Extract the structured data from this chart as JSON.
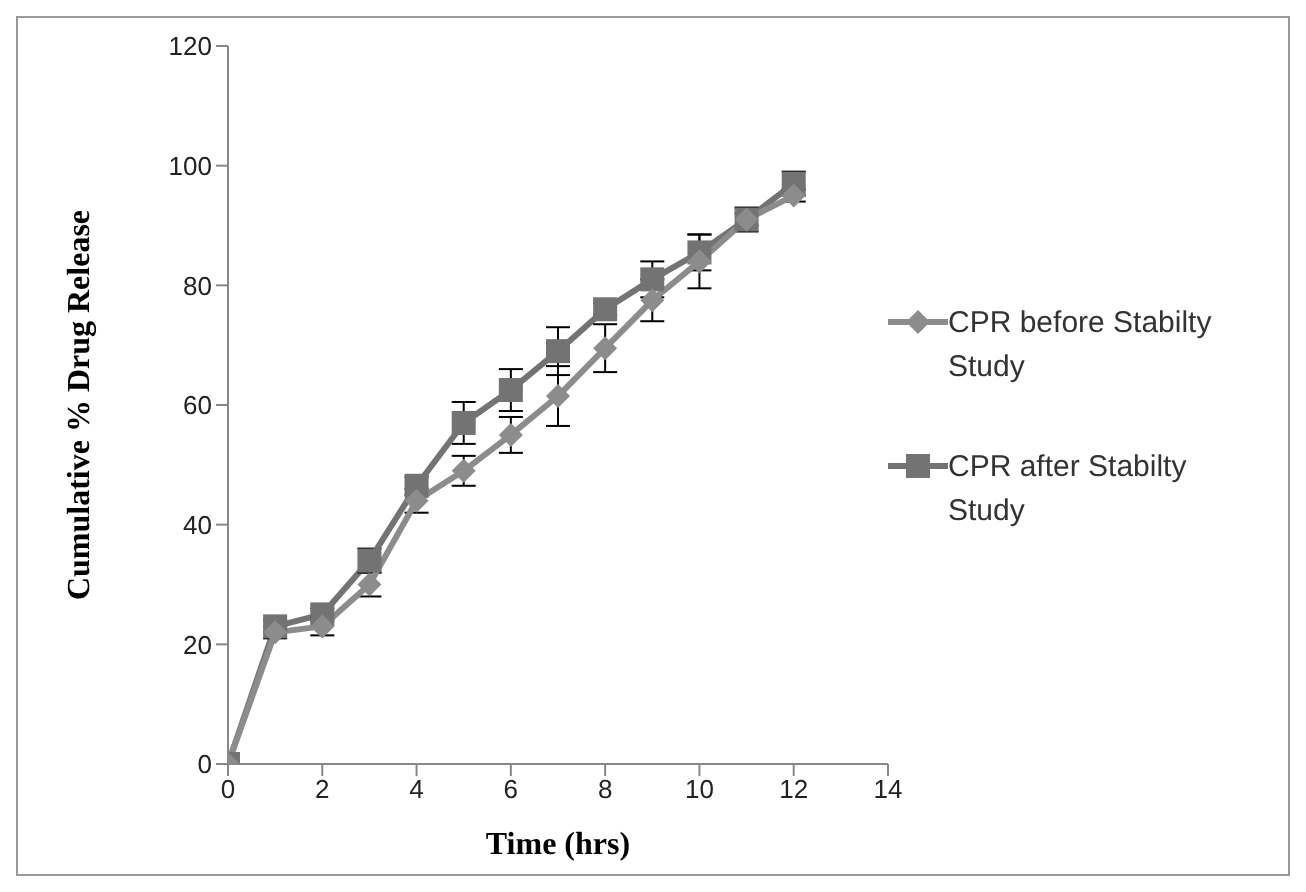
{
  "chart_data": {
    "type": "line",
    "xlabel": "Time (hrs)",
    "ylabel": "Cumulative % Drug Release",
    "x": [
      0,
      1,
      2,
      3,
      4,
      5,
      6,
      7,
      8,
      9,
      10,
      11,
      12
    ],
    "series": [
      {
        "name": "CPR before Stabilty Study",
        "color": "#8c8c8c",
        "marker": "diamond",
        "values": [
          0,
          22,
          23,
          30,
          44,
          49,
          55,
          61.5,
          69.5,
          77.5,
          84,
          91,
          95
        ],
        "errors": [
          0,
          1,
          1.5,
          2,
          2,
          2.5,
          3,
          5,
          4,
          3.5,
          4.5,
          2,
          1
        ]
      },
      {
        "name": "CPR after Stabilty Study",
        "color": "#737373",
        "marker": "square",
        "values": [
          0,
          23,
          25,
          34,
          46.5,
          57,
          62.5,
          69,
          76,
          81,
          85.5,
          91,
          97
        ],
        "errors": [
          0,
          1,
          1,
          2,
          1.5,
          3.5,
          3.5,
          4,
          1,
          3,
          3,
          1,
          2
        ]
      }
    ],
    "xlim": [
      0,
      14
    ],
    "xticks": [
      0,
      2,
      4,
      6,
      8,
      10,
      12,
      14
    ],
    "ylim": [
      0,
      120
    ],
    "yticks": [
      0,
      20,
      40,
      60,
      80,
      100,
      120
    ],
    "grid": false,
    "legend": "right",
    "line_style": "solid"
  }
}
